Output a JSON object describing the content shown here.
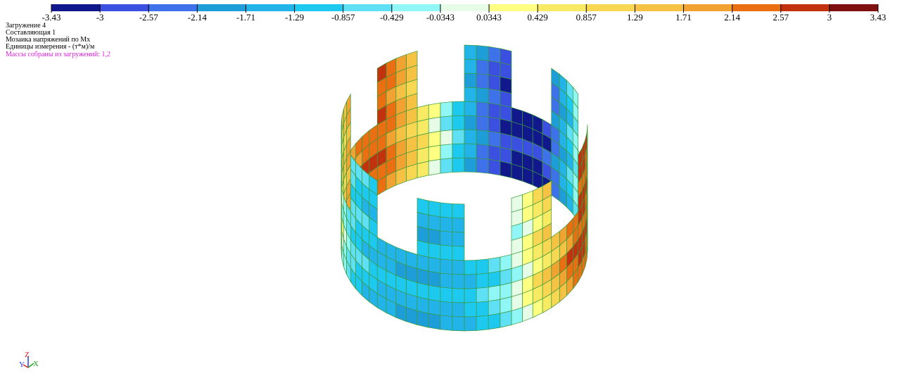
{
  "legend": {
    "colors": [
      "#10188c",
      "#3b4fe0",
      "#3d72ea",
      "#1e9ed8",
      "#22b4e8",
      "#1ec9f0",
      "#5fe0f5",
      "#90f6f6",
      "#e6fce6",
      "#ffff82",
      "#f8ea62",
      "#f8d852",
      "#f5c244",
      "#f1a231",
      "#e96f12",
      "#c2320f",
      "#7f1010"
    ],
    "ticks": [
      -3.43,
      -3,
      -2.57,
      -2.14,
      -1.71,
      -1.29,
      -0.857,
      -0.429,
      -0.0343,
      0.0343,
      0.429,
      0.857,
      1.29,
      1.71,
      2.14,
      2.57,
      3,
      3.43
    ]
  },
  "info": {
    "lines": [
      "Загружение 4",
      "Составляющая  1",
      "Мозаика напряжений по Mx",
      "Единицы измерения - (т*м)/м"
    ],
    "masses": "Массы собраны из загружений:  1,2"
  },
  "axes": {
    "y": "Y",
    "z": "Z",
    "x": "X"
  }
}
